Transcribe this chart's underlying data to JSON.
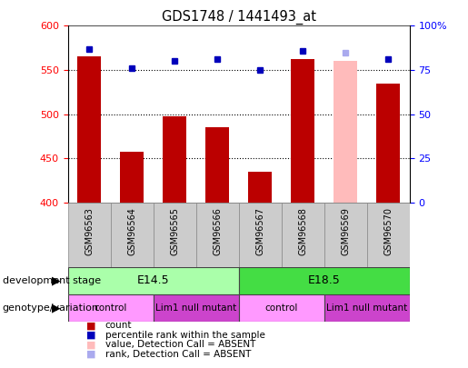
{
  "title": "GDS1748 / 1441493_at",
  "samples": [
    "GSM96563",
    "GSM96564",
    "GSM96565",
    "GSM96566",
    "GSM96567",
    "GSM96568",
    "GSM96569",
    "GSM96570"
  ],
  "count_values": [
    565,
    457,
    497,
    485,
    435,
    562,
    560,
    535
  ],
  "count_absent": [
    false,
    false,
    false,
    false,
    false,
    false,
    true,
    false
  ],
  "percentile_values": [
    87,
    76,
    80,
    81,
    75,
    86,
    85,
    81
  ],
  "percentile_absent": [
    false,
    false,
    false,
    false,
    false,
    false,
    true,
    false
  ],
  "ylim_left": [
    400,
    600
  ],
  "ylim_right": [
    0,
    100
  ],
  "yticks_left": [
    400,
    450,
    500,
    550,
    600
  ],
  "yticks_right": [
    0,
    25,
    50,
    75,
    100
  ],
  "bar_color_normal": "#bb0000",
  "bar_color_absent": "#ffbbbb",
  "dot_color_normal": "#0000bb",
  "dot_color_absent": "#aaaaee",
  "dev_stage_groups": [
    {
      "label": "E14.5",
      "start": 0,
      "end": 3,
      "color": "#aaffaa"
    },
    {
      "label": "E18.5",
      "start": 4,
      "end": 7,
      "color": "#44dd44"
    }
  ],
  "geno_groups": [
    {
      "label": "control",
      "start": 0,
      "end": 1,
      "color": "#ff99ff"
    },
    {
      "label": "Lim1 null mutant",
      "start": 2,
      "end": 3,
      "color": "#cc44cc"
    },
    {
      "label": "control",
      "start": 4,
      "end": 5,
      "color": "#ff99ff"
    },
    {
      "label": "Lim1 null mutant",
      "start": 6,
      "end": 7,
      "color": "#cc44cc"
    }
  ],
  "legend_items": [
    {
      "label": "count",
      "color": "#bb0000"
    },
    {
      "label": "percentile rank within the sample",
      "color": "#0000bb"
    },
    {
      "label": "value, Detection Call = ABSENT",
      "color": "#ffbbbb"
    },
    {
      "label": "rank, Detection Call = ABSENT",
      "color": "#aaaaee"
    }
  ],
  "dev_stage_label": "development stage",
  "geno_label": "genotype/variation",
  "gridlines": [
    450,
    500,
    550
  ],
  "fig_width": 5.15,
  "fig_height": 4.05,
  "dpi": 100
}
